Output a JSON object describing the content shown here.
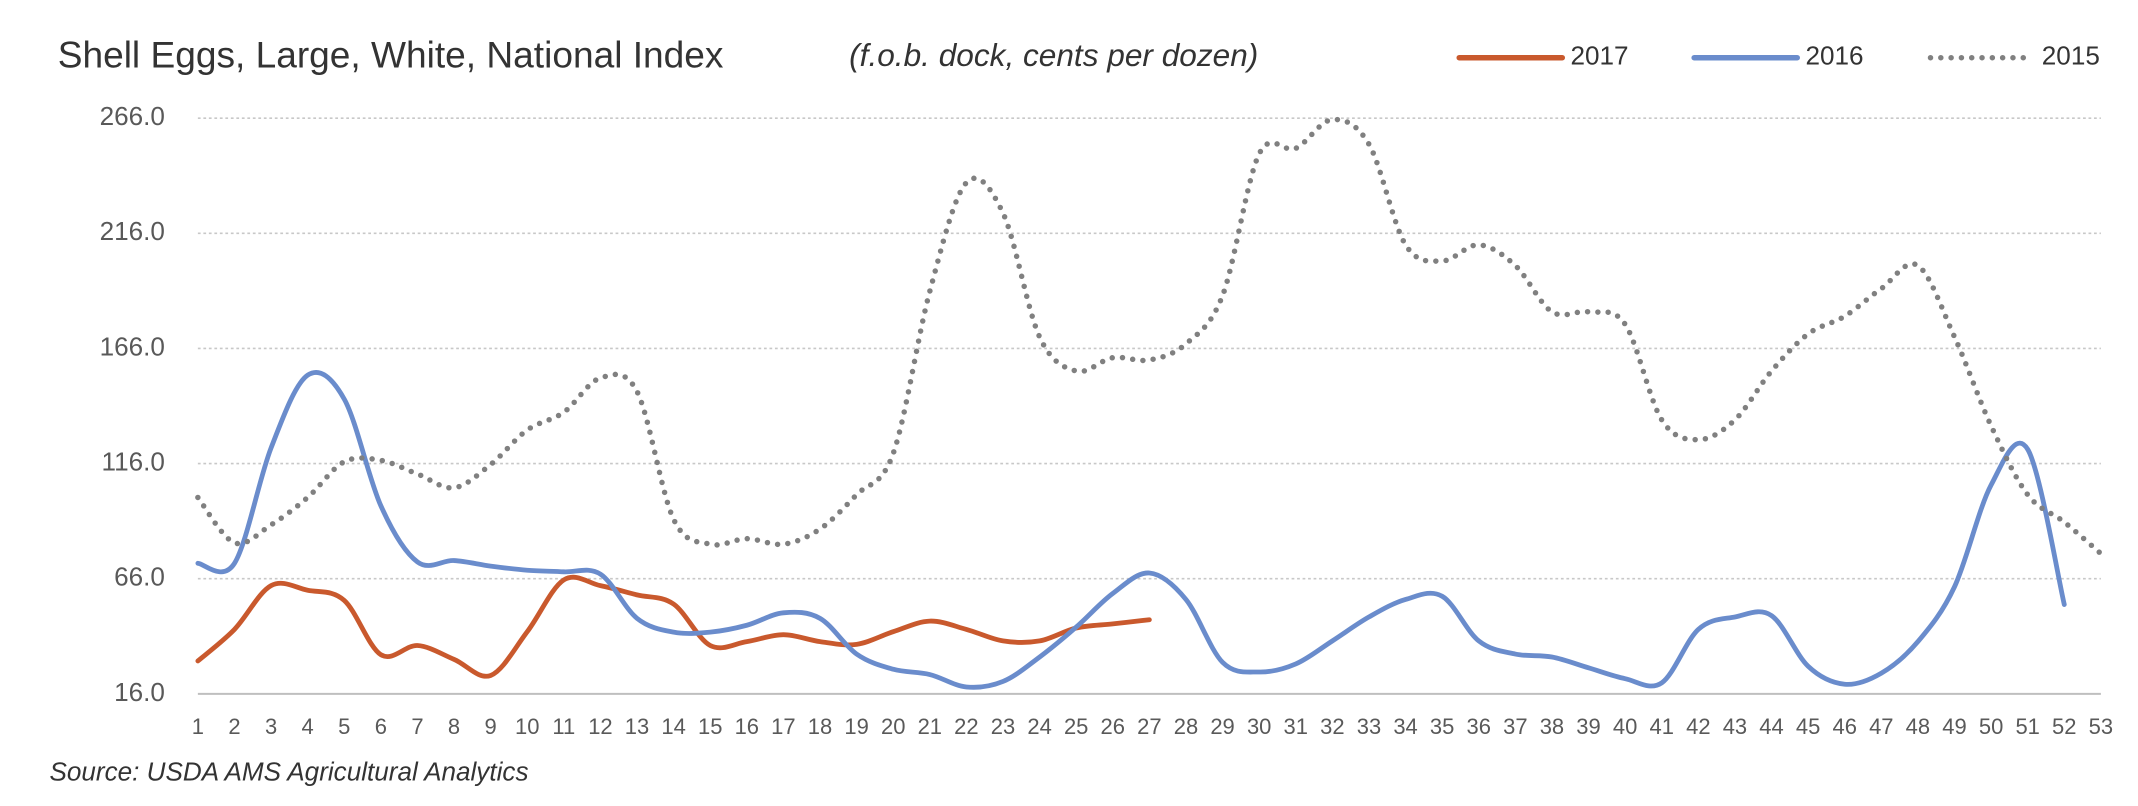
{
  "chart_data": {
    "type": "line",
    "title": "Shell Eggs, Large, White, National Index",
    "subtitle": "(f.o.b. dock, cents per dozen)",
    "source": "Source: USDA AMS Agricultural Analytics",
    "x": [
      1,
      2,
      3,
      4,
      5,
      6,
      7,
      8,
      9,
      10,
      11,
      12,
      13,
      14,
      15,
      16,
      17,
      18,
      19,
      20,
      21,
      22,
      23,
      24,
      25,
      26,
      27,
      28,
      29,
      30,
      31,
      32,
      33,
      34,
      35,
      36,
      37,
      38,
      39,
      40,
      41,
      42,
      43,
      44,
      45,
      46,
      47,
      48,
      49,
      50,
      51,
      52,
      53
    ],
    "xlim": [
      1,
      53
    ],
    "ylim": [
      16,
      266
    ],
    "yticks": [
      {
        "value": 16,
        "label": "16.0"
      },
      {
        "value": 66,
        "label": "66.0"
      },
      {
        "value": 116,
        "label": "116.0"
      },
      {
        "value": 166,
        "label": "166.0"
      },
      {
        "value": 216,
        "label": "216.0"
      },
      {
        "value": 266,
        "label": "266.0"
      }
    ],
    "grid": true,
    "legend": "top-right",
    "series": [
      {
        "name": "2017",
        "color": "#c9592d",
        "style": "solid",
        "values": [
          30.3,
          44,
          63,
          61,
          56.6,
          33,
          37,
          31,
          24,
          43,
          65.5,
          63,
          59,
          55,
          37,
          38.7,
          41.7,
          38.7,
          37.5,
          43,
          47.6,
          44,
          39,
          39,
          44.6,
          46.4,
          48.2,
          null,
          null,
          null,
          null,
          null,
          null,
          null,
          null,
          null,
          null,
          null,
          null,
          null,
          null,
          null,
          null,
          null,
          null,
          null,
          null,
          null,
          null,
          null,
          null,
          null,
          null
        ]
      },
      {
        "name": "2016",
        "color": "#6a8ccc",
        "style": "solid",
        "values": [
          72.7,
          72.7,
          122.8,
          154.4,
          144,
          97.7,
          73.3,
          73.9,
          71.5,
          69.7,
          69,
          68,
          48.8,
          42.8,
          42.8,
          45.8,
          51.2,
          48.8,
          33.3,
          26.7,
          24.4,
          19,
          21.4,
          32,
          45,
          59.6,
          68.5,
          57,
          29.7,
          25.5,
          29,
          39,
          49.4,
          57,
          58.4,
          39,
          33.3,
          32,
          27.3,
          22.6,
          20.8,
          44,
          49.4,
          50,
          28,
          20.2,
          25,
          38.7,
          62.5,
          106.7,
          122.2,
          54.8,
          null
        ]
      },
      {
        "name": "2015",
        "color": "#808080",
        "style": "dotted",
        "values": [
          101.3,
          81.6,
          89.4,
          101.3,
          116.8,
          117.4,
          111.5,
          105.5,
          115.6,
          130.6,
          138.3,
          153.2,
          147.3,
          91.8,
          81,
          83.4,
          81,
          87.6,
          102.5,
          120.4,
          190.8,
          238,
          224.8,
          171,
          156.2,
          162,
          161,
          168,
          189,
          250.5,
          252.9,
          265.4,
          254.7,
          211,
          204,
          211,
          202,
          181.9,
          181.9,
          176.5,
          135,
          126.4,
          135,
          156.2,
          172.3,
          180,
          192,
          202,
          171,
          132.4,
          102.5,
          90.6,
          76.9
        ]
      }
    ]
  }
}
